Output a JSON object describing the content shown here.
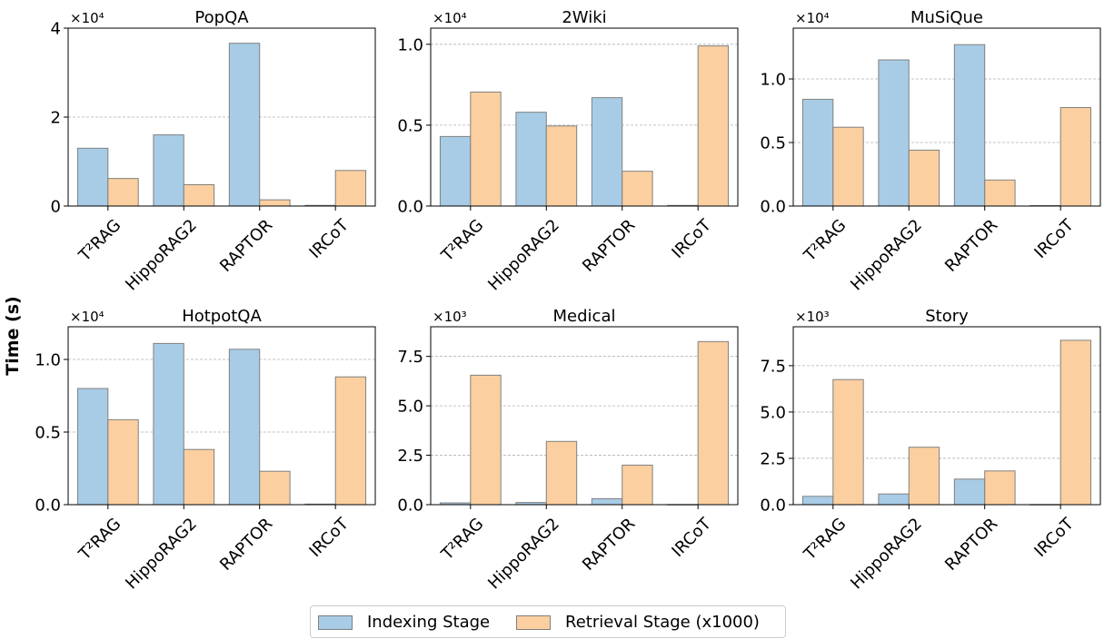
{
  "ylabel": "Time (s)",
  "legend": {
    "items": [
      {
        "label": "Indexing Stage",
        "color": "#a8cce6"
      },
      {
        "label": "Retrieval Stage (x1000)",
        "color": "#fbcfa0"
      }
    ]
  },
  "chart_data": [
    {
      "type": "bar",
      "title": "PopQA",
      "categories": [
        "T²RAG",
        "HippoRAG2",
        "RAPTOR",
        "IRCoT"
      ],
      "series": [
        {
          "name": "Indexing Stage",
          "values": [
            13000,
            16000,
            36600,
            150
          ]
        },
        {
          "name": "Retrieval Stage (x1000)",
          "values": [
            6200,
            4800,
            1400,
            8000
          ]
        }
      ],
      "ylim": [
        0,
        40000
      ],
      "yticks": [
        0,
        20000,
        40000
      ],
      "yticklabels": [
        "0",
        "2",
        "4"
      ],
      "scale_label": "×10⁴",
      "grid": "y"
    },
    {
      "type": "bar",
      "title": "2Wiki",
      "categories": [
        "T²RAG",
        "HippoRAG2",
        "RAPTOR",
        "IRCoT"
      ],
      "series": [
        {
          "name": "Indexing Stage",
          "values": [
            4300,
            5800,
            6700,
            40
          ]
        },
        {
          "name": "Retrieval Stage (x1000)",
          "values": [
            7050,
            4950,
            2150,
            9900
          ]
        }
      ],
      "ylim": [
        0,
        11000
      ],
      "yticks": [
        0,
        5000,
        10000
      ],
      "yticklabels": [
        "0.0",
        "0.5",
        "1.0"
      ],
      "scale_label": "×10⁴",
      "grid": "y"
    },
    {
      "type": "bar",
      "title": "MuSiQue",
      "categories": [
        "T²RAG",
        "HippoRAG2",
        "RAPTOR",
        "IRCoT"
      ],
      "series": [
        {
          "name": "Indexing Stage",
          "values": [
            8400,
            11500,
            12700,
            40
          ]
        },
        {
          "name": "Retrieval Stage (x1000)",
          "values": [
            6200,
            4400,
            2050,
            7750
          ]
        }
      ],
      "ylim": [
        0,
        14000
      ],
      "yticks": [
        0,
        5000,
        10000
      ],
      "yticklabels": [
        "0.0",
        "0.5",
        "1.0"
      ],
      "scale_label": "×10⁴",
      "grid": "y"
    },
    {
      "type": "bar",
      "title": "HotpotQA",
      "categories": [
        "T²RAG",
        "HippoRAG2",
        "RAPTOR",
        "IRCoT"
      ],
      "series": [
        {
          "name": "Indexing Stage",
          "values": [
            8000,
            11100,
            10700,
            40
          ]
        },
        {
          "name": "Retrieval Stage (x1000)",
          "values": [
            5850,
            3800,
            2300,
            8800
          ]
        }
      ],
      "ylim": [
        0,
        12250
      ],
      "yticks": [
        0,
        5000,
        10000
      ],
      "yticklabels": [
        "0.0",
        "0.5",
        "1.0"
      ],
      "scale_label": "×10⁴",
      "grid": "y"
    },
    {
      "type": "bar",
      "title": "Medical",
      "categories": [
        "T²RAG",
        "HippoRAG2",
        "RAPTOR",
        "IRCoT"
      ],
      "series": [
        {
          "name": "Indexing Stage",
          "values": [
            90,
            110,
            300,
            10
          ]
        },
        {
          "name": "Retrieval Stage (x1000)",
          "values": [
            6550,
            3200,
            2000,
            8250
          ]
        }
      ],
      "ylim": [
        0,
        9000
      ],
      "yticks": [
        0,
        2500,
        5000,
        7500
      ],
      "yticklabels": [
        "0.0",
        "2.5",
        "5.0",
        "7.5"
      ],
      "scale_label": "×10³",
      "grid": "y"
    },
    {
      "type": "bar",
      "title": "Story",
      "categories": [
        "T²RAG",
        "HippoRAG2",
        "RAPTOR",
        "IRCoT"
      ],
      "series": [
        {
          "name": "Indexing Stage",
          "values": [
            450,
            580,
            1380,
            10
          ]
        },
        {
          "name": "Retrieval Stage (x1000)",
          "values": [
            6750,
            3100,
            1820,
            8870
          ]
        }
      ],
      "ylim": [
        0,
        9600
      ],
      "yticks": [
        0,
        2500,
        5000,
        7500
      ],
      "yticklabels": [
        "0.0",
        "2.5",
        "5.0",
        "7.5"
      ],
      "scale_label": "×10³",
      "grid": "y"
    }
  ]
}
